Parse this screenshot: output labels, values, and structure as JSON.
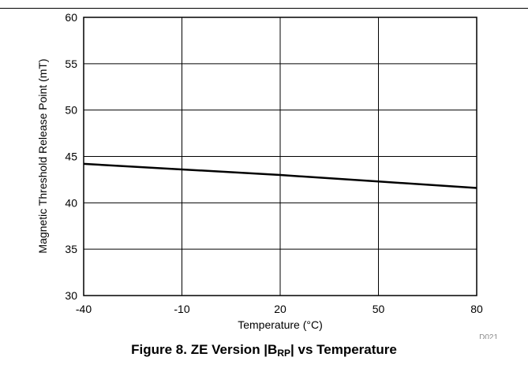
{
  "chart_data": {
    "type": "line",
    "xlabel": "Temperature (°C)",
    "ylabel": "Magnetic Threshold Release Point (mT)",
    "xlim": [
      -40,
      80
    ],
    "ylim": [
      30,
      60
    ],
    "xticks": [
      -40,
      -10,
      20,
      50,
      80
    ],
    "yticks": [
      30,
      35,
      40,
      45,
      50,
      55,
      60
    ],
    "grid": true,
    "series": [
      {
        "x": [
          -40,
          -10,
          20,
          50,
          80
        ],
        "y": [
          44.2,
          43.6,
          43.0,
          42.3,
          41.6
        ]
      }
    ],
    "figure_id": "D021"
  },
  "caption": {
    "prefix": "Figure 8. ZE Version |B",
    "subscript": "RP",
    "suffix": "| vs Temperature"
  }
}
